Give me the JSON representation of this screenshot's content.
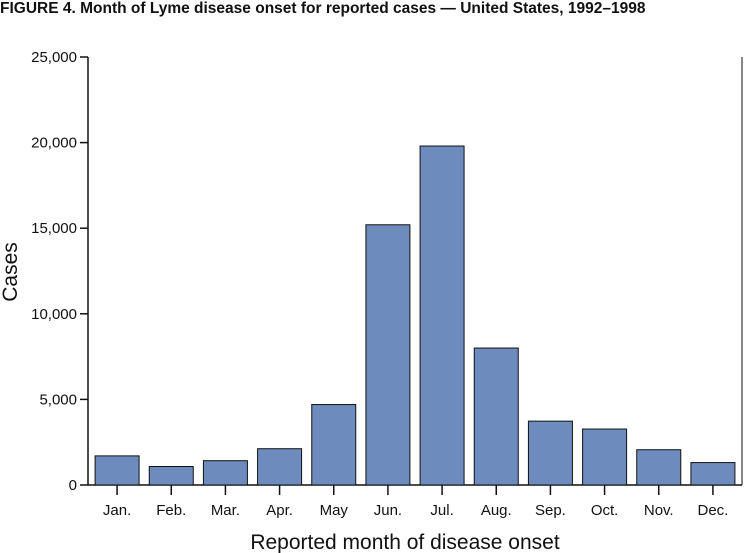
{
  "chart_data": {
    "type": "bar",
    "title": "FIGURE 4. Month of Lyme disease onset for reported cases — United States, 1992–1998",
    "xlabel": "Reported month of disease onset",
    "ylabel": "Cases",
    "categories": [
      "Jan.",
      "Feb.",
      "Mar.",
      "Apr.",
      "May",
      "Jun.",
      "Jul.",
      "Aug.",
      "Sep.",
      "Oct.",
      "Nov.",
      "Dec."
    ],
    "values": [
      1700,
      1080,
      1420,
      2120,
      4700,
      15200,
      19800,
      8000,
      3730,
      3270,
      2060,
      1310
    ],
    "ylim": [
      0,
      25000
    ],
    "yticks": [
      0,
      5000,
      10000,
      15000,
      20000,
      25000
    ],
    "ytick_labels": [
      "0",
      "5,000",
      "10,000",
      "15,000",
      "20,000",
      "25,000"
    ],
    "grid": false,
    "bar_color": "#6d8bbd"
  }
}
